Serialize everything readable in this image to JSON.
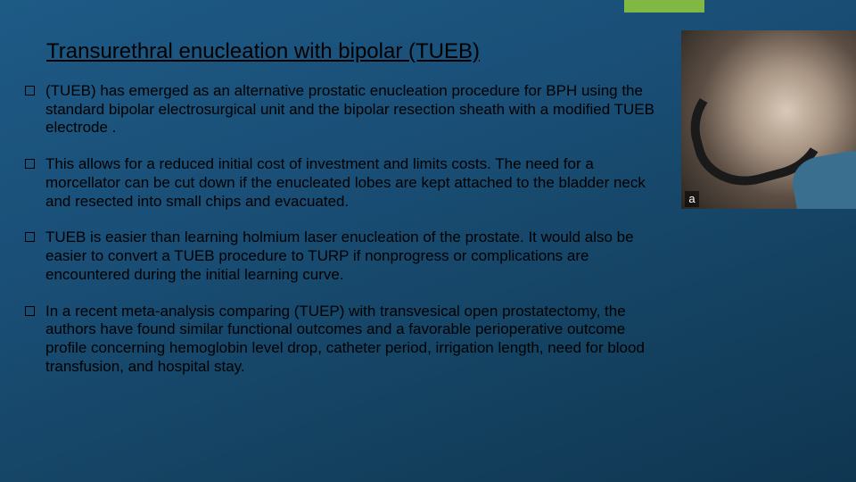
{
  "accent_color": "#7fb843",
  "background_gradient": [
    "#1d5a85",
    "#1a4f77",
    "#144261",
    "#0f3651"
  ],
  "title": "Transurethral enucleation with bipolar (TUEB)",
  "bullets": [
    "(TUEB) has emerged as an alternative prostatic enucleation procedure for BPH using the standard bipolar electrosurgical unit and the bipolar resection sheath with a modified TUEB electrode .",
    "This allows for a reduced initial cost of investment and limits costs. The need for a morcellator can be cut down if the enucleated lobes are kept attached to the bladder neck and resected into small chips and evacuated.",
    "TUEB is easier than learning holmium laser enucleation of the prostate. It would also be easier to convert a TUEB procedure to TURP if nonprogress or complications are encountered during the initial learning curve.",
    "In a recent meta-analysis comparing (TUEP) with transvesical open prostatectomy, the authors have found similar functional outcomes and a favorable perioperative outcome profile concerning hemoglobin level drop, catheter period, irrigation length, need for blood transfusion, and hospital stay."
  ],
  "figure": {
    "label": "a"
  },
  "typography": {
    "title_fontsize": 24,
    "body_fontsize": 17,
    "title_underline": true
  }
}
